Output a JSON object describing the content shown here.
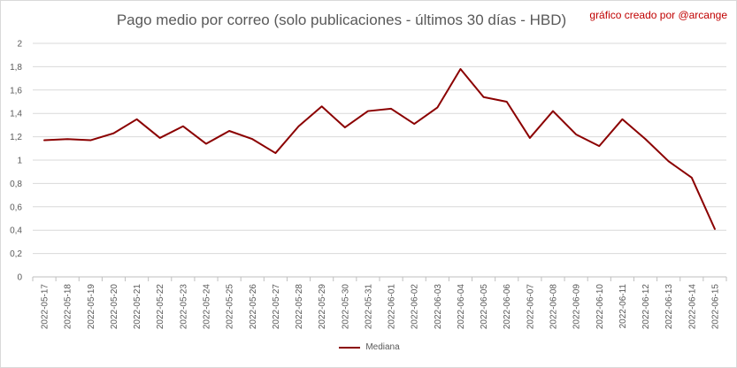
{
  "chart_data": {
    "type": "line",
    "title": "Pago medio por correo (solo publicaciones - últimos 30 días - HBD)",
    "credit": "gráfico creado por @arcange",
    "categories": [
      "2022-05-17",
      "2022-05-18",
      "2022-05-19",
      "2022-05-20",
      "2022-05-21",
      "2022-05-22",
      "2022-05-23",
      "2022-05-24",
      "2022-05-25",
      "2022-05-26",
      "2022-05-27",
      "2022-05-28",
      "2022-05-29",
      "2022-05-30",
      "2022-05-31",
      "2022-06-01",
      "2022-06-02",
      "2022-06-03",
      "2022-06-04",
      "2022-06-05",
      "2022-06-06",
      "2022-06-07",
      "2022-06-08",
      "2022-06-09",
      "2022-06-10",
      "2022-06-11",
      "2022-06-12",
      "2022-06-13",
      "2022-06-14",
      "2022-06-15"
    ],
    "series": [
      {
        "name": "Mediana",
        "color": "#8b0000",
        "values": [
          1.17,
          1.18,
          1.17,
          1.23,
          1.35,
          1.19,
          1.29,
          1.14,
          1.25,
          1.18,
          1.06,
          1.29,
          1.46,
          1.28,
          1.42,
          1.44,
          1.31,
          1.45,
          1.78,
          1.54,
          1.5,
          1.19,
          1.42,
          1.22,
          1.12,
          1.35,
          1.18,
          0.99,
          0.85,
          0.41
        ]
      }
    ],
    "ylim": [
      0,
      2
    ],
    "yticks": [
      "0",
      "0,2",
      "0,4",
      "0,6",
      "0,8",
      "1",
      "1,2",
      "1,4",
      "1,6",
      "1,8",
      "2"
    ],
    "grid": true,
    "legend_position": "bottom"
  }
}
